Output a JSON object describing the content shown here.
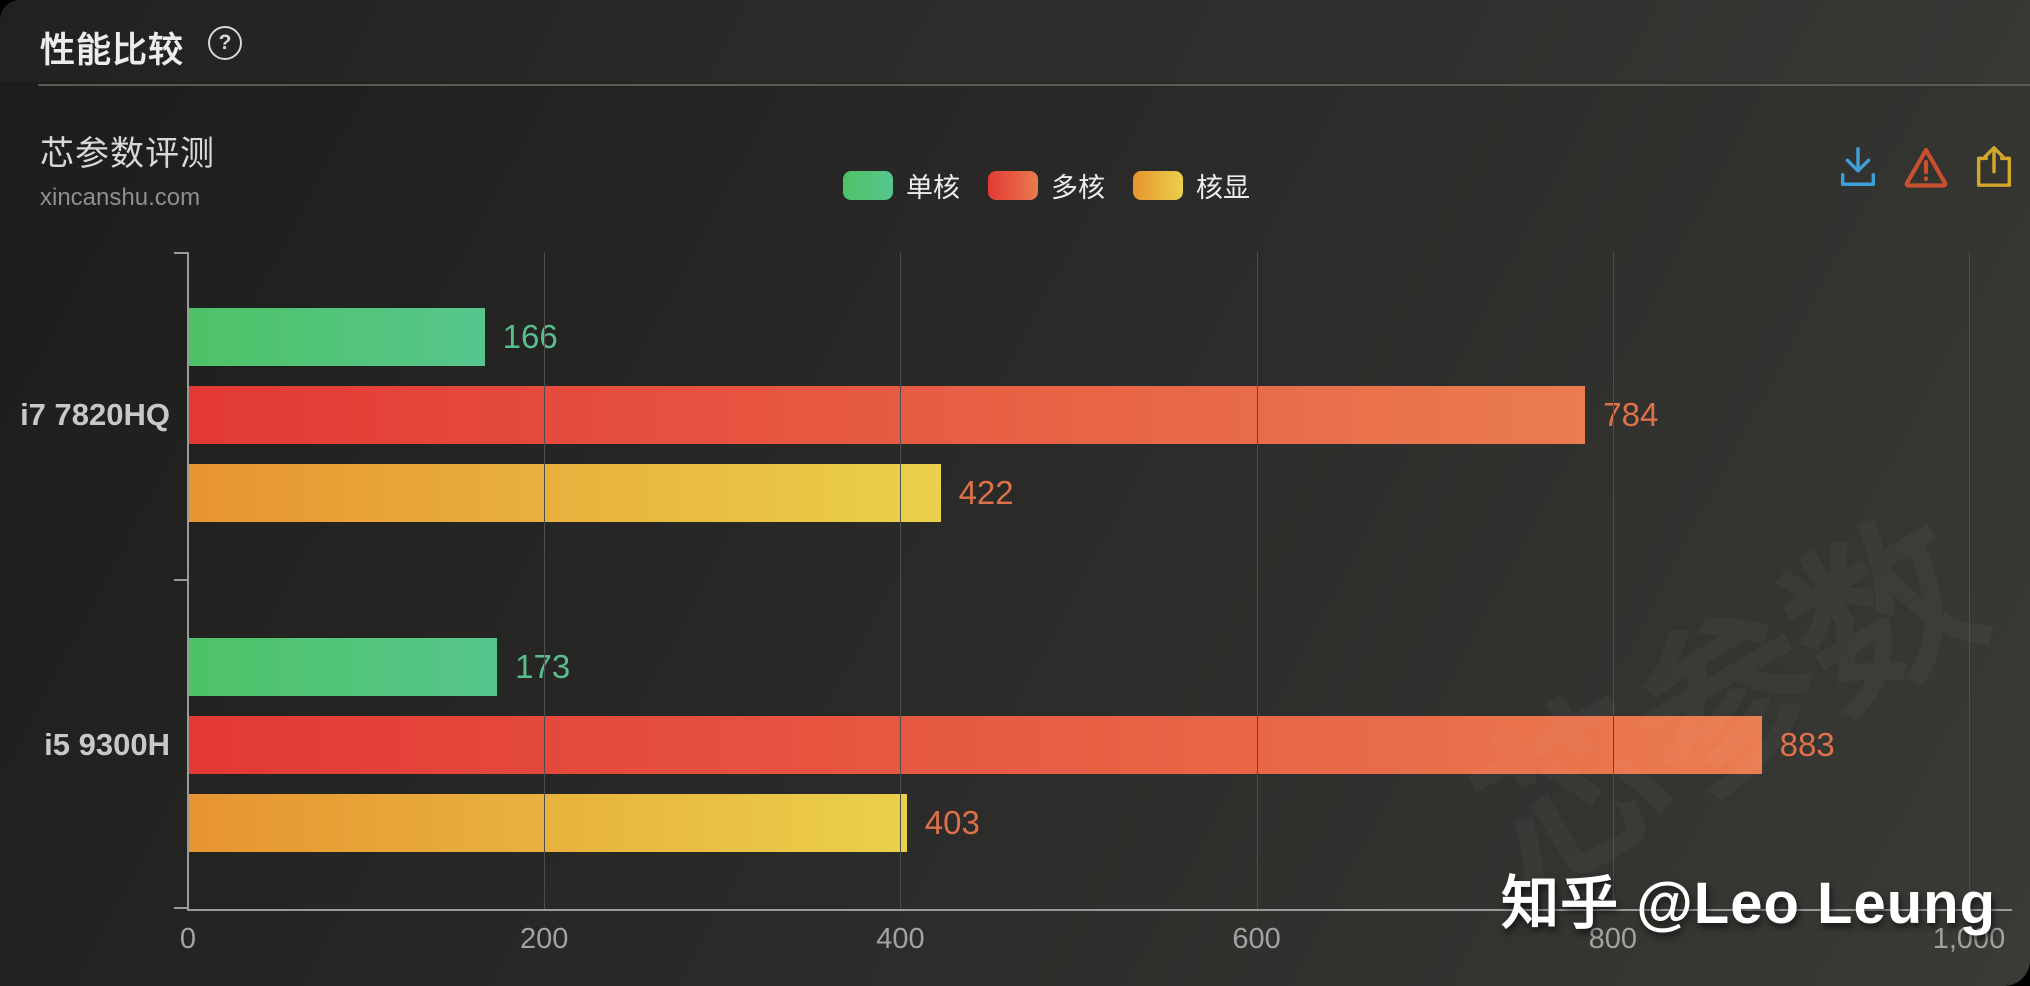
{
  "header": {
    "title": "性能比较",
    "help_glyph": "?"
  },
  "panel": {
    "title": "芯参数评测",
    "subtitle": "xincanshu.com"
  },
  "toolbar": {
    "download_color": "#3f9fd8",
    "warning_color": "#c9502f",
    "share_color": "#d2a72c"
  },
  "chart_data": {
    "type": "bar",
    "orientation": "horizontal",
    "title": "芯参数评测",
    "categories": [
      "i7 7820HQ",
      "i5 9300H"
    ],
    "series": [
      {
        "name": "单核",
        "values": [
          166,
          173
        ],
        "gradient": [
          "#4ec267",
          "#57c68d"
        ],
        "label_color": "#57bf8b"
      },
      {
        "name": "多核",
        "values": [
          784,
          883
        ],
        "gradient": [
          "#e33936",
          "#ea7c4f"
        ],
        "label_color": "#de704a"
      },
      {
        "name": "核显",
        "values": [
          422,
          403
        ],
        "gradient": [
          "#e79430",
          "#ead04b"
        ],
        "label_color": "#de704a"
      }
    ],
    "xlim": [
      0,
      1000
    ],
    "x_ticks": [
      "0",
      "200",
      "400",
      "600",
      "800",
      "1,000"
    ],
    "grid": true,
    "legend_position": "top-center"
  },
  "watermarks": {
    "zhihu": "知乎 @Leo Leung",
    "faint": "芯参数"
  }
}
